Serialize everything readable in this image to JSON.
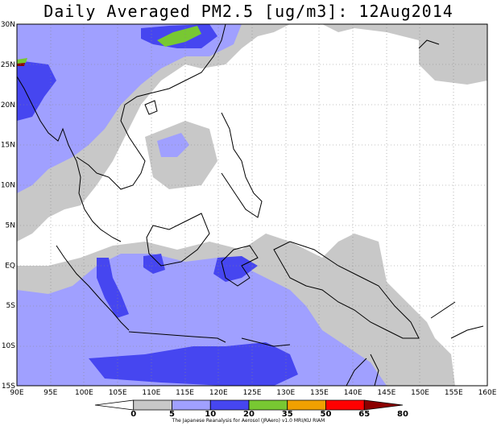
{
  "title": "Daily Averaged PM2.5 [ug/m3]: 12Aug2014",
  "map": {
    "lon_range": [
      90,
      160
    ],
    "lat_range": [
      -15,
      30
    ],
    "lon_ticks": [
      "90E",
      "95E",
      "100E",
      "105E",
      "110E",
      "115E",
      "120E",
      "125E",
      "130E",
      "135E",
      "140E",
      "145E",
      "150E",
      "155E",
      "160E"
    ],
    "lat_ticks": [
      "30N",
      "25N",
      "20N",
      "15N",
      "10N",
      "5N",
      "EQ",
      "5S",
      "10S",
      "15S"
    ]
  },
  "colorbar": {
    "levels": [
      "0",
      "5",
      "10",
      "20",
      "35",
      "50",
      "65",
      "80"
    ],
    "colors": [
      "#ffffff",
      "#c8c8c8",
      "#a0a0ff",
      "#4646f0",
      "#78c832",
      "#f0a000",
      "#ff0000",
      "#8c0000"
    ]
  },
  "credit": "The Japanese Reanalysis for Aerosol (JRAero) v1.0 MRI/KU RIAM"
}
